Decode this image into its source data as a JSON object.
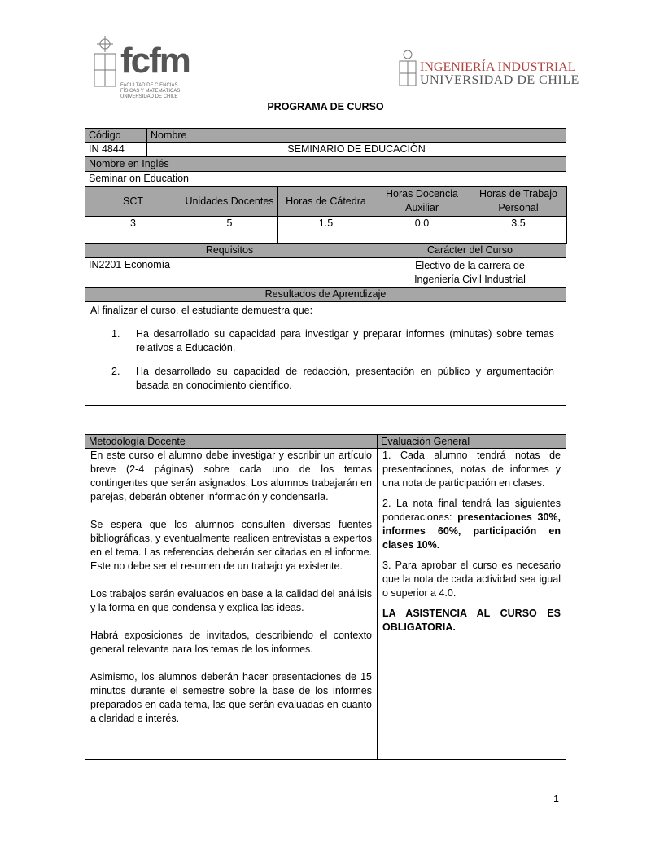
{
  "logos": {
    "fcfm": "fcfm",
    "fcfm_sub": [
      "FACULTAD DE CIENCIAS",
      "FÍSICAS Y MATEMÁTICAS",
      "UNIVERSIDAD DE CHILE"
    ],
    "ii_line1": "INGENIERÍA INDUSTRIAL",
    "ii_line2": "UNIVERSIDAD DE CHILE"
  },
  "title": "PROGRAMA DE CURSO",
  "course": {
    "code_label": "Código",
    "name_label": "Nombre",
    "code": "IN 4844",
    "name": "SEMINARIO DE EDUCACIÓN",
    "english_label": "Nombre en Inglés",
    "english": "Seminar on Education"
  },
  "hours": {
    "headers": [
      "SCT",
      "Unidades Docentes",
      "Horas de Cátedra",
      "Horas Docencia Auxiliar",
      "Horas de Trabajo Personal"
    ],
    "values": [
      "3",
      "5",
      "1.5",
      "0.0",
      "3.5"
    ]
  },
  "req": {
    "label": "Requisitos",
    "value": "IN2201 Economía",
    "char_label": "Carácter del Curso",
    "char_value": "Electivo de la carrera de Ingeniería Civil Industrial"
  },
  "results": {
    "label": "Resultados de Aprendizaje",
    "intro": "Al finalizar el curso, el estudiante demuestra que:",
    "items": [
      {
        "n": "1.",
        "text": "Ha desarrollado su capacidad para investigar y preparar informes (minutas) sobre temas relativos a Educación."
      },
      {
        "n": "2.",
        "text": "Ha desarrollado su capacidad de redacción, presentación en público y argumentación basada en conocimiento científico."
      }
    ]
  },
  "method": {
    "label": "Metodología Docente",
    "paragraphs": [
      "En este curso el alumno debe investigar y escribir un artículo breve (2-4 páginas) sobre cada uno de los temas contingentes que serán asignados. Los alumnos trabajarán en parejas, deberán obtener información y condensarla.",
      "Se espera que los alumnos consulten diversas fuentes bibliográficas, y eventualmente realicen entrevistas a expertos en el tema. Las referencias deberán ser citadas en el informe. Este no debe ser el resumen de un trabajo ya existente.",
      "Los trabajos serán evaluados en base a la calidad del análisis y la forma en que condensa y explica las ideas.",
      "Habrá exposiciones de invitados, describiendo el contexto general relevante para los temas de los informes.",
      "Asimismo, los alumnos deberán hacer presentaciones de 15 minutos durante el semestre sobre la base de los informes preparados en cada tema, las que serán evaluadas en cuanto a claridad e interés."
    ]
  },
  "eval": {
    "label": "Evaluación General",
    "p1": "1. Cada alumno tendrá notas de presentaciones, notas de informes y una nota de participación en clases.",
    "p2a": "2. La nota final tendrá las siguientes ponderaciones: ",
    "p2b": "presentaciones 30%, informes 60%, participación en clases 10%.",
    "p3": "3. Para aprobar el curso es necesario que la nota de cada actividad sea igual o superior a 4.0.",
    "p4": "LA ASISTENCIA AL CURSO ES OBLIGATORIA."
  },
  "page_number": "1"
}
